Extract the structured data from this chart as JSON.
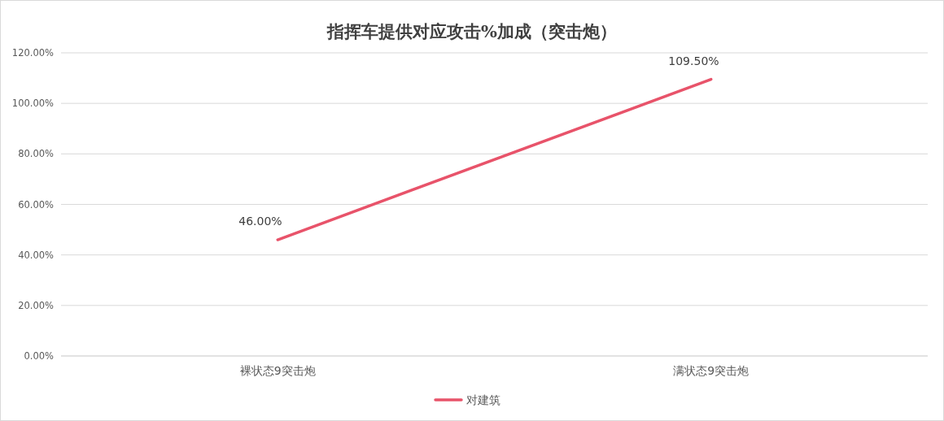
{
  "chart_data": {
    "type": "line",
    "title": "指挥车提供对应攻击%加成（突击炮）",
    "categories": [
      "裸状态9突击炮",
      "满状态9突击炮"
    ],
    "series": [
      {
        "name": "对建筑",
        "color": "#e8536a",
        "values": [
          46,
          109.5
        ],
        "value_labels": [
          "46.00%",
          "109.50%"
        ]
      }
    ],
    "ylim": [
      0,
      120
    ],
    "yticks": [
      {
        "value": 0,
        "label": "0.00%"
      },
      {
        "value": 20,
        "label": "20.00%"
      },
      {
        "value": 40,
        "label": "40.00%"
      },
      {
        "value": 60,
        "label": "60.00%"
      },
      {
        "value": 80,
        "label": "80.00%"
      },
      {
        "value": 100,
        "label": "100.00%"
      },
      {
        "value": 120,
        "label": "120.00%"
      }
    ],
    "grid": "y",
    "legend": "bottom",
    "marker": "none",
    "line_style": "solid"
  }
}
